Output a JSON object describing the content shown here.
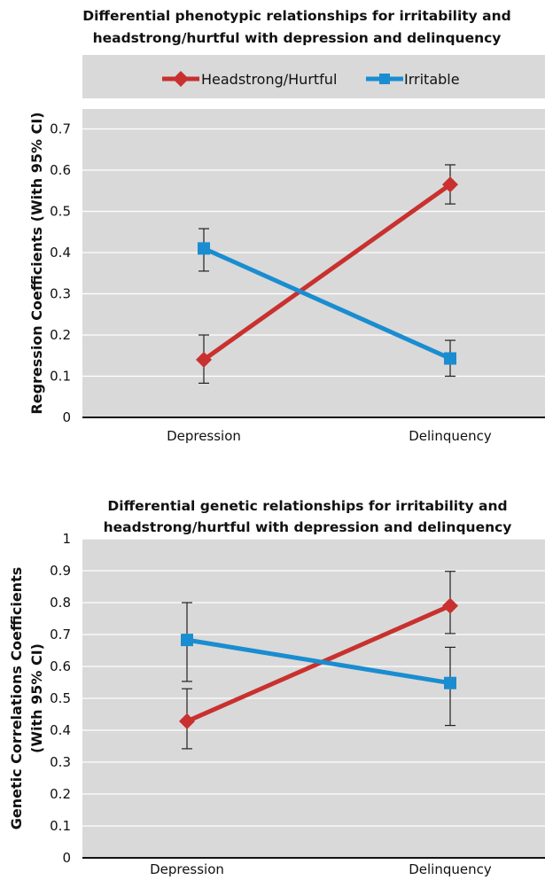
{
  "chart_data": [
    {
      "type": "line",
      "title_lines": [
        "Differential phenotypic relationships for irritability and",
        "headstrong/hurtful with depression and delinquency"
      ],
      "ylabel": "Regression Coefficients (With 95% CI)",
      "categories": [
        "Depression",
        "Delinquency"
      ],
      "yticks": [
        "0",
        "0.1",
        "0.2",
        "0.3",
        "0.4",
        "0.5",
        "0.6",
        "0.7"
      ],
      "ylim": [
        0,
        0.75
      ],
      "grid": true,
      "legend_position": "top",
      "series": [
        {
          "name": "Headstrong/Hurtful",
          "color": "#c8312f",
          "marker": "diamond",
          "values": [
            0.14,
            0.565
          ],
          "ci_low": [
            0.083,
            0.518
          ],
          "ci_high": [
            0.2,
            0.613
          ]
        },
        {
          "name": "Irritable",
          "color": "#1a8dd0",
          "marker": "square",
          "values": [
            0.41,
            0.143
          ],
          "ci_low": [
            0.355,
            0.1
          ],
          "ci_high": [
            0.458,
            0.187
          ]
        }
      ]
    },
    {
      "type": "line",
      "title_lines": [
        "Differential genetic relationships for irritability and",
        "headstrong/hurtful with depression and delinquency"
      ],
      "ylabel_lines": [
        "Genetic Correlations Coefficients",
        "(With 95% CI)"
      ],
      "categories": [
        "Depression",
        "Delinquency"
      ],
      "yticks": [
        "0",
        "0.1",
        "0.2",
        "0.3",
        "0.4",
        "0.5",
        "0.6",
        "0.7",
        "0.8",
        "0.9",
        "1"
      ],
      "ylim": [
        0,
        1
      ],
      "grid": true,
      "legend": false,
      "series": [
        {
          "color": "#c8312f",
          "marker": "diamond",
          "values": [
            0.428,
            0.79
          ],
          "ci_low": [
            0.342,
            0.703
          ],
          "ci_high": [
            0.53,
            0.898
          ]
        },
        {
          "color": "#1a8dd0",
          "marker": "square",
          "values": [
            0.683,
            0.548
          ],
          "ci_low": [
            0.553,
            0.415
          ],
          "ci_high": [
            0.8,
            0.66
          ]
        }
      ]
    }
  ]
}
